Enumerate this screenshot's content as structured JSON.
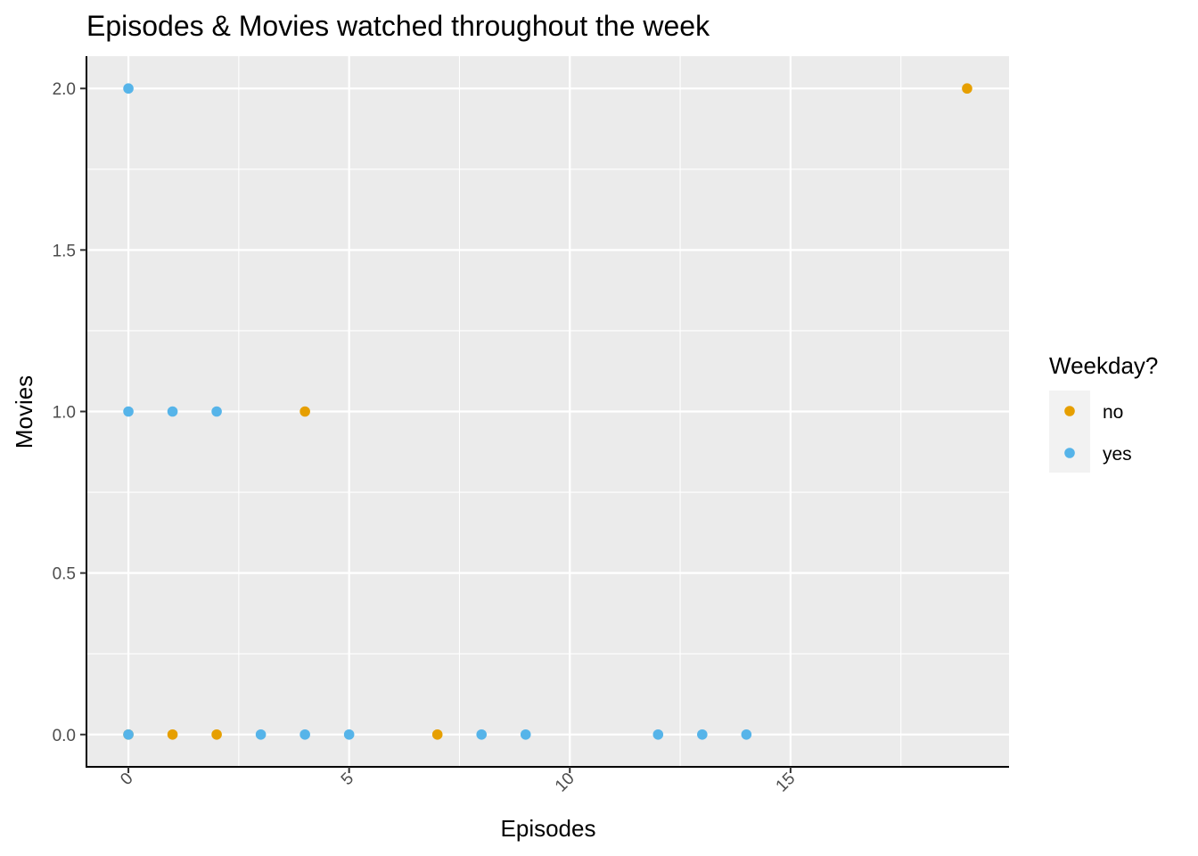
{
  "chart_data": {
    "type": "scatter",
    "title": "Episodes & Movies watched throughout the week",
    "xlabel": "Episodes",
    "ylabel": "Movies",
    "xlim": [
      -0.95,
      19.95
    ],
    "ylim": [
      -0.1,
      2.1
    ],
    "x_ticks": [
      0,
      5,
      10,
      15
    ],
    "x_tick_labels": [
      "0",
      "5",
      "10",
      "15"
    ],
    "y_ticks": [
      0,
      0.5,
      1,
      1.5,
      2
    ],
    "y_tick_labels": [
      "0.0",
      "0.5",
      "1.0",
      "1.5",
      "2.0"
    ],
    "x_tick_rotation": -45,
    "grid": true,
    "legend": {
      "title": "Weekday?",
      "placement": "right"
    },
    "series": [
      {
        "name": "no",
        "color": "#E69F00",
        "points": [
          [
            19,
            2
          ],
          [
            4,
            1
          ],
          [
            0,
            0
          ],
          [
            1,
            0
          ],
          [
            2,
            0
          ],
          [
            7,
            0
          ]
        ]
      },
      {
        "name": "yes",
        "color": "#56B4E9",
        "points": [
          [
            0,
            2
          ],
          [
            0,
            1
          ],
          [
            1,
            1
          ],
          [
            2,
            1
          ],
          [
            0,
            0
          ],
          [
            3,
            0
          ],
          [
            4,
            0
          ],
          [
            5,
            0
          ],
          [
            8,
            0
          ],
          [
            9,
            0
          ],
          [
            12,
            0
          ],
          [
            13,
            0
          ],
          [
            14,
            0
          ]
        ]
      }
    ]
  }
}
